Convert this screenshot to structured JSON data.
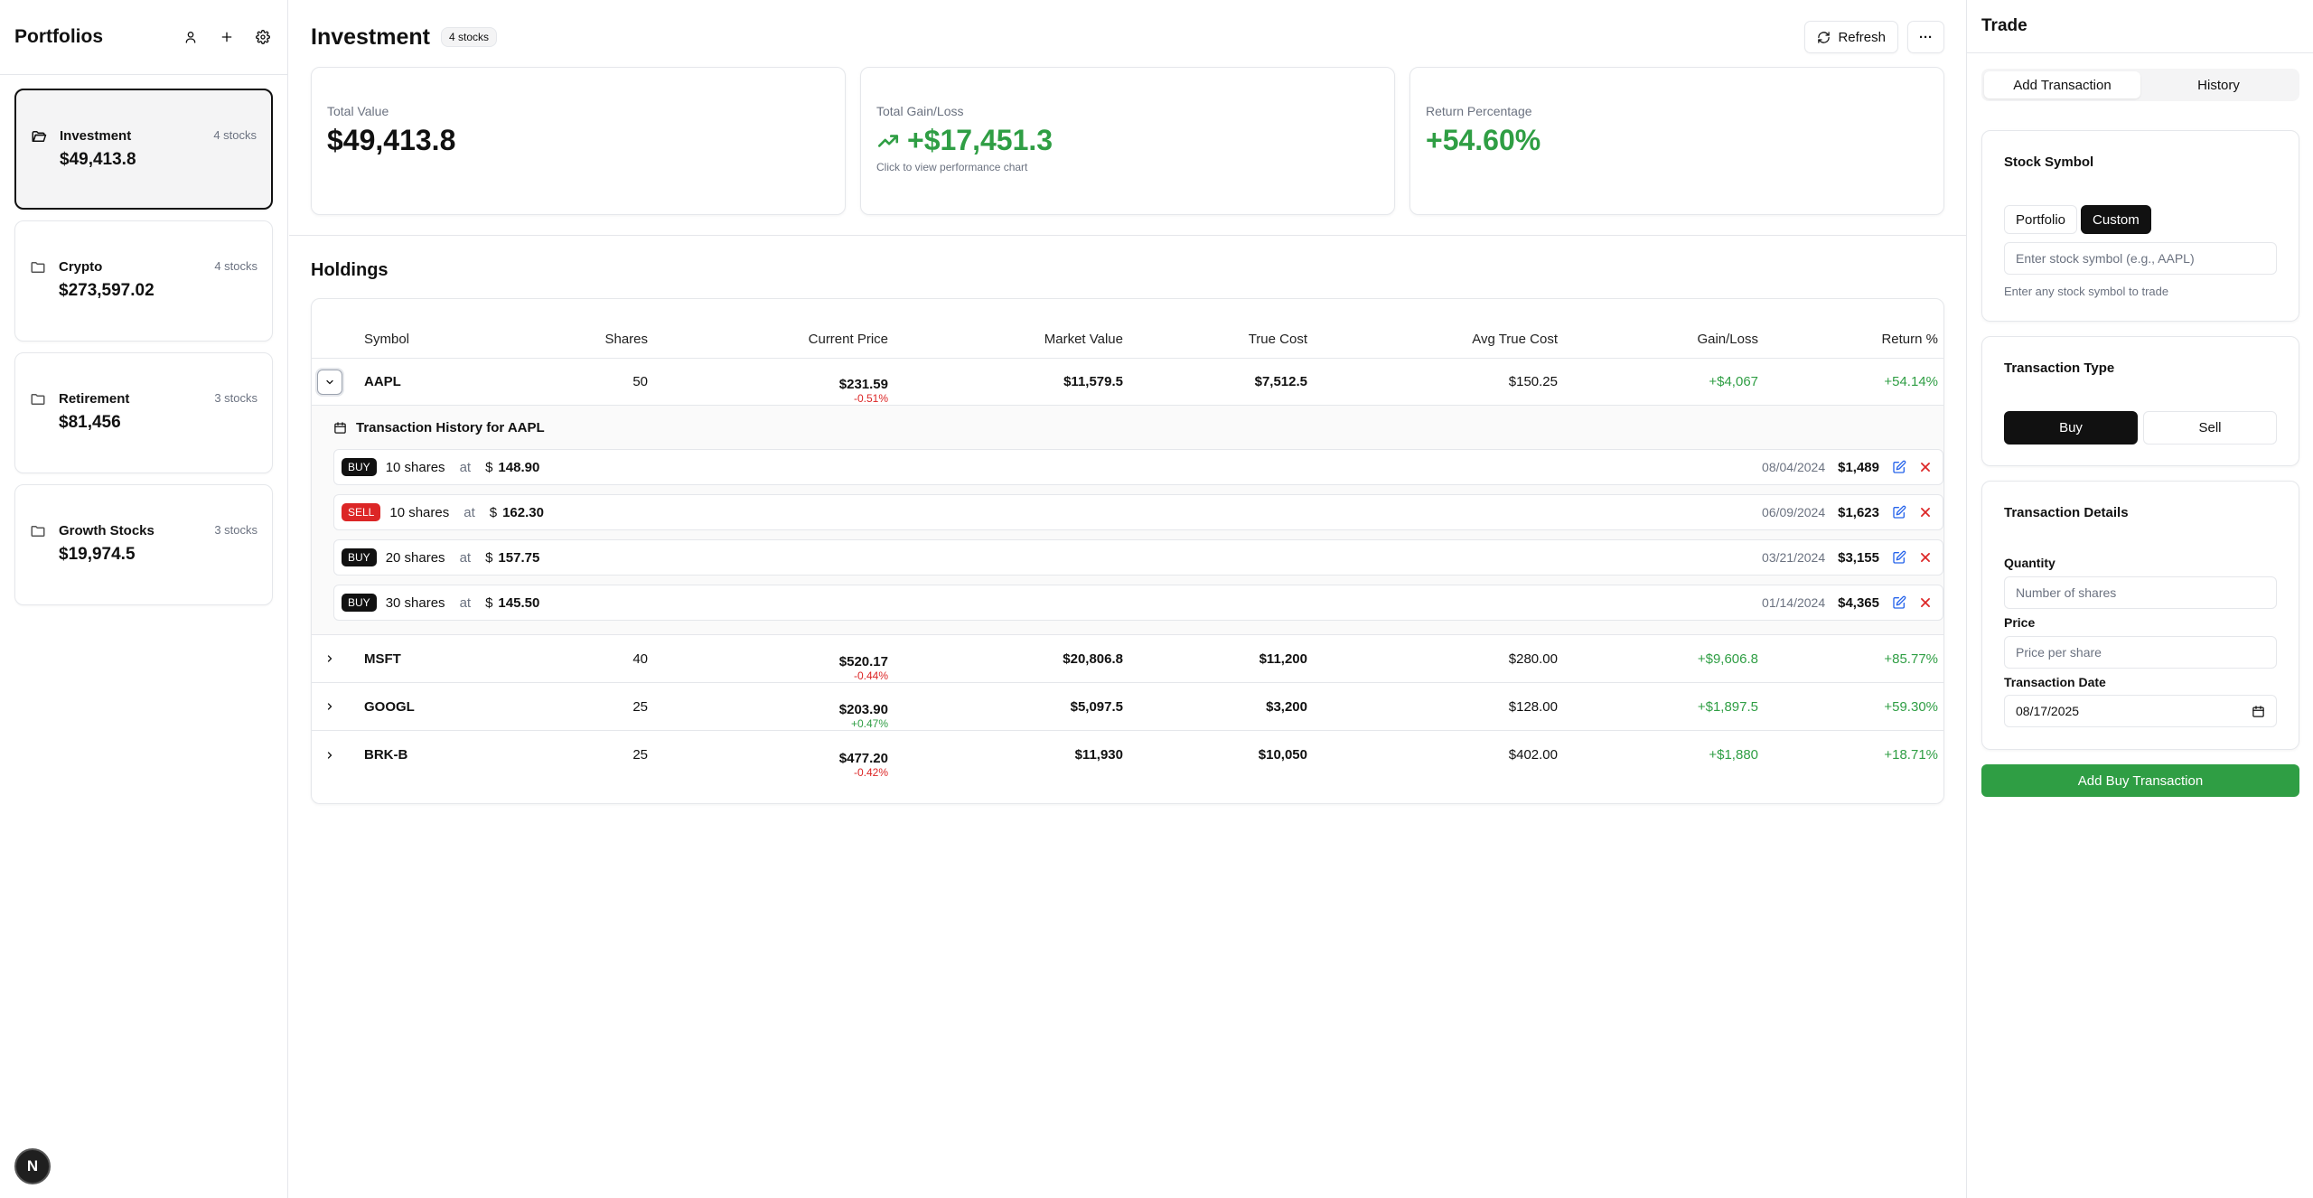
{
  "sidebar": {
    "title": "Portfolios",
    "portfolios": [
      {
        "name": "Investment",
        "count": "4 stocks",
        "value": "$49,413.8"
      },
      {
        "name": "Crypto",
        "count": "4 stocks",
        "value": "$273,597.02"
      },
      {
        "name": "Retirement",
        "count": "3 stocks",
        "value": "$81,456"
      },
      {
        "name": "Growth Stocks",
        "count": "3 stocks",
        "value": "$19,974.5"
      }
    ],
    "next_badge": "N"
  },
  "main": {
    "title": "Investment",
    "count_badge": "4 stocks",
    "refresh_label": "Refresh",
    "more_label": "···",
    "stats": {
      "total_value_label": "Total Value",
      "total_value": "$49,413.8",
      "gain_label": "Total Gain/Loss",
      "gain_value": "+$17,451.3",
      "gain_sub": "Click to view performance chart",
      "return_label": "Return Percentage",
      "return_value": "+54.60%"
    },
    "holdings_title": "Holdings",
    "columns": [
      "Symbol",
      "Shares",
      "Current Price",
      "Market Value",
      "True Cost",
      "Avg True Cost",
      "Gain/Loss",
      "Return %"
    ],
    "rows": [
      {
        "symbol": "AAPL",
        "shares": "50",
        "price": "$231.59",
        "change": "-0.51%",
        "market_value": "$11,579.5",
        "true_cost": "$7,512.5",
        "avg_cost": "$150.25",
        "gain": "+$4,067",
        "return": "+54.14%"
      },
      {
        "symbol": "MSFT",
        "shares": "40",
        "price": "$520.17",
        "change": "-0.44%",
        "market_value": "$20,806.8",
        "true_cost": "$11,200",
        "avg_cost": "$280.00",
        "gain": "+$9,606.8",
        "return": "+85.77%"
      },
      {
        "symbol": "GOOGL",
        "shares": "25",
        "price": "$203.90",
        "change": "+0.47%",
        "market_value": "$5,097.5",
        "true_cost": "$3,200",
        "avg_cost": "$128.00",
        "gain": "+$1,897.5",
        "return": "+59.30%"
      },
      {
        "symbol": "BRK-B",
        "shares": "25",
        "price": "$477.20",
        "change": "-0.42%",
        "market_value": "$11,930",
        "true_cost": "$10,050",
        "avg_cost": "$402.00",
        "gain": "+$1,880",
        "return": "+18.71%"
      }
    ],
    "txn_history": {
      "title": "Transaction History for AAPL",
      "items": [
        {
          "type": "BUY",
          "shares": "10 shares",
          "at": "at",
          "currency": "$",
          "price": "148.90",
          "date": "08/04/2024",
          "total": "$1,489"
        },
        {
          "type": "SELL",
          "shares": "10 shares",
          "at": "at",
          "currency": "$",
          "price": "162.30",
          "date": "06/09/2024",
          "total": "$1,623"
        },
        {
          "type": "BUY",
          "shares": "20 shares",
          "at": "at",
          "currency": "$",
          "price": "157.75",
          "date": "03/21/2024",
          "total": "$3,155"
        },
        {
          "type": "BUY",
          "shares": "30 shares",
          "at": "at",
          "currency": "$",
          "price": "145.50",
          "date": "01/14/2024",
          "total": "$4,365"
        }
      ]
    }
  },
  "trade": {
    "title": "Trade",
    "tabs": [
      "Add Transaction",
      "History"
    ],
    "symbol_card": {
      "title": "Stock Symbol",
      "seg": [
        "Portfolio",
        "Custom"
      ],
      "placeholder": "Enter stock symbol (e.g., AAPL)",
      "hint": "Enter any stock symbol to trade"
    },
    "type_card": {
      "title": "Transaction Type",
      "buy": "Buy",
      "sell": "Sell"
    },
    "details_card": {
      "title": "Transaction Details",
      "quantity_label": "Quantity",
      "quantity_placeholder": "Number of shares",
      "price_label": "Price",
      "price_placeholder": "Price per share",
      "date_label": "Transaction Date",
      "date_value": "08/17/2025"
    },
    "submit_label": "Add Buy Transaction"
  },
  "colors": {
    "positive": "#2f9e44",
    "negative": "#dc2626",
    "accent_dark": "#111111",
    "edit_icon": "#2563eb"
  },
  "icons": [
    "user-icon",
    "plus-icon",
    "gear-icon",
    "folder-icon",
    "refresh-icon",
    "more-icon",
    "trend-up-icon",
    "chevron-down-icon",
    "chevron-right-icon",
    "calendar-icon",
    "edit-icon",
    "close-icon"
  ]
}
